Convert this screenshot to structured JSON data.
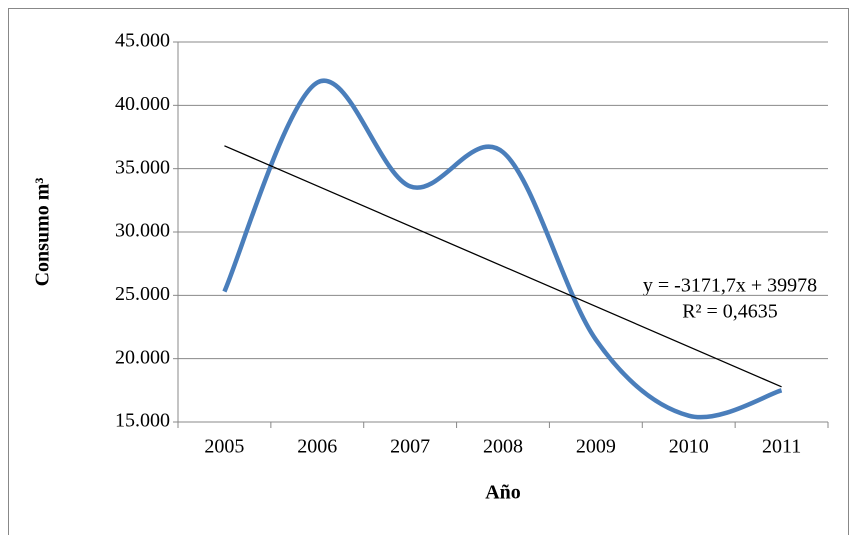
{
  "chart_data": {
    "type": "line",
    "x_label": "Año",
    "y_label": "Consumo m³",
    "categories": [
      "2005",
      "2006",
      "2007",
      "2008",
      "2009",
      "2010",
      "2011"
    ],
    "values": [
      25300,
      41800,
      33600,
      36300,
      21500,
      15500,
      17500
    ],
    "color": "#4a7ebb",
    "smooth": true,
    "ylim": [
      15000,
      45000
    ],
    "yticks": [
      {
        "value": 15000,
        "label": "15.000"
      },
      {
        "value": 20000,
        "label": "20.000"
      },
      {
        "value": 25000,
        "label": "25.000"
      },
      {
        "value": 30000,
        "label": "30.000"
      },
      {
        "value": 35000,
        "label": "35.000"
      },
      {
        "value": 40000,
        "label": "40.000"
      },
      {
        "value": 45000,
        "label": "45.000"
      }
    ],
    "grid": true,
    "trendline": {
      "equation": "y = -3171,7x + 39978",
      "r2": "R² = 0,4635",
      "slope": -3171.7,
      "intercept": 39978
    }
  }
}
